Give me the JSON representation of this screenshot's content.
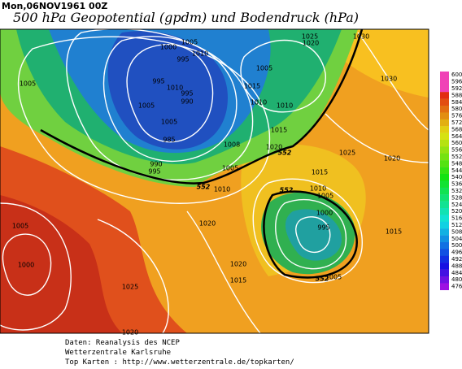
{
  "header": {
    "date": "Mon,06NOV1961  00Z",
    "title": "500 hPa Geopotential (gpdm) und Bodendruck (hPa)"
  },
  "legend": {
    "values": [
      600,
      596,
      592,
      588,
      584,
      580,
      576,
      572,
      568,
      564,
      560,
      556,
      552,
      548,
      544,
      540,
      536,
      532,
      528,
      524,
      520,
      516,
      512,
      508,
      504,
      500,
      496,
      492,
      488,
      484,
      480,
      476
    ]
  },
  "isobar_labels": [
    1005,
    1000,
    995,
    1010,
    995,
    1010,
    1005,
    1005,
    995,
    990,
    990,
    995,
    985,
    1005,
    1025,
    1020,
    1030,
    1005,
    1015,
    1010,
    1010,
    1015,
    1008,
    1005,
    1010,
    1020,
    1025,
    1020,
    1030,
    1015,
    1010,
    1005,
    1000,
    995,
    1015,
    1020,
    1005,
    1000,
    1025,
    1020,
    1015,
    1005,
    1020
  ],
  "geopotential_labels": [
    552,
    552,
    552,
    552
  ],
  "footer": [
    "Daten: Reanalysis des NCEP",
    "Wetterzentrale Karlsruhe",
    "Top Karten :  http://www.wetterzentrale.de/topkarten/"
  ]
}
